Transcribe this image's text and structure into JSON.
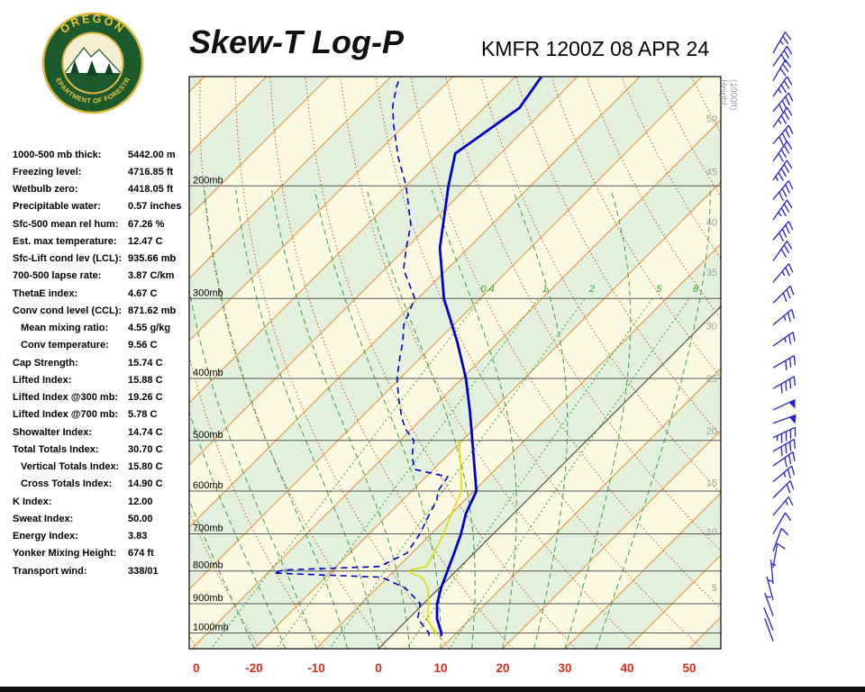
{
  "header": {
    "title": "Skew-T Log-P",
    "station_time": "KMFR 1200Z 08 APR 24",
    "logo_text_top": "OREGON",
    "logo_text_bottom": "DEPARTMENT OF FORESTRY"
  },
  "indices": [
    {
      "label": "1000-500 mb thick:",
      "value": "5442.00 m",
      "indent": false
    },
    {
      "label": "Freezing level:",
      "value": "4716.85 ft",
      "indent": false
    },
    {
      "label": "Wetbulb zero:",
      "value": "4418.05 ft",
      "indent": false
    },
    {
      "label": "Precipitable water:",
      "value": "0.57 inches",
      "indent": false
    },
    {
      "label": "Sfc-500 mean rel hum:",
      "value": "67.26 %",
      "indent": false
    },
    {
      "label": "Est. max temperature:",
      "value": "12.47 C",
      "indent": false
    },
    {
      "label": "Sfc-Lift cond lev (LCL):",
      "value": "935.66 mb",
      "indent": false
    },
    {
      "label": "700-500 lapse rate:",
      "value": "3.87 C/km",
      "indent": false
    },
    {
      "label": "ThetaE index:",
      "value": "4.67 C",
      "indent": false
    },
    {
      "label": "Conv cond level (CCL):",
      "value": "871.62 mb",
      "indent": false
    },
    {
      "label": "Mean mixing ratio:",
      "value": "4.55 g/kg",
      "indent": true
    },
    {
      "label": "Conv temperature:",
      "value": "9.56 C",
      "indent": true
    },
    {
      "label": "Cap Strength:",
      "value": "15.74 C",
      "indent": false
    },
    {
      "label": "Lifted Index:",
      "value": "15.88 C",
      "indent": false
    },
    {
      "label": "Lifted Index @300 mb:",
      "value": "19.26 C",
      "indent": false
    },
    {
      "label": "Lifted Index @700 mb:",
      "value": "5.78 C",
      "indent": false
    },
    {
      "label": "Showalter Index:",
      "value": "14.74 C",
      "indent": false
    },
    {
      "label": "Total Totals Index:",
      "value": "30.70 C",
      "indent": false
    },
    {
      "label": "Vertical Totals Index:",
      "value": "15.80 C",
      "indent": true
    },
    {
      "label": "Cross Totals Index:",
      "value": "14.90 C",
      "indent": true
    },
    {
      "label": "K Index:",
      "value": "12.00",
      "indent": false
    },
    {
      "label": "Sweat Index:",
      "value": "50.00",
      "indent": false
    },
    {
      "label": "Energy Index:",
      "value": "3.83",
      "indent": false
    },
    {
      "label": "Yonker Mixing Height:",
      "value": "674 ft",
      "indent": false
    },
    {
      "label": "Transport wind:",
      "value": "338/01",
      "indent": false
    }
  ],
  "chart_data": {
    "type": "skewt-log-p-sounding",
    "title": "Skew-T Log-P",
    "station_time": "KMFR 1200Z 08 APR 24",
    "pressure_axis": {
      "unit": "mb",
      "levels": [
        {
          "p": 200,
          "label": "200mb"
        },
        {
          "p": 300,
          "label": "300mb"
        },
        {
          "p": 400,
          "label": "400mb"
        },
        {
          "p": 500,
          "label": "500mb"
        },
        {
          "p": 600,
          "label": "600mb"
        },
        {
          "p": 700,
          "label": "700mb"
        },
        {
          "p": 800,
          "label": "800mb"
        },
        {
          "p": 900,
          "label": "900mb"
        },
        {
          "p": 1000,
          "label": "1000mb"
        }
      ]
    },
    "temp_axis": {
      "unit": "C",
      "labels": [
        {
          "label": "0",
          "t": -29.3
        },
        {
          "label": "-20",
          "t": -20
        },
        {
          "label": "-10",
          "t": -10
        },
        {
          "label": "0",
          "t": 0
        },
        {
          "label": "10",
          "t": 10
        },
        {
          "label": "20",
          "t": 20
        },
        {
          "label": "30",
          "t": 30
        },
        {
          "label": "40",
          "t": 40
        },
        {
          "label": "50",
          "t": 50
        }
      ]
    },
    "height_axis": {
      "label_line1": "Height",
      "label_line2": "(1000ft)",
      "ticks": [
        {
          "kft": 50,
          "p": 157
        },
        {
          "kft": 45,
          "p": 190
        },
        {
          "kft": 40,
          "p": 228
        },
        {
          "kft": 35,
          "p": 273
        },
        {
          "kft": 30,
          "p": 331
        },
        {
          "kft": 25,
          "p": 400
        },
        {
          "kft": 20,
          "p": 483
        },
        {
          "kft": 15,
          "p": 582
        },
        {
          "kft": 10,
          "p": 694
        },
        {
          "kft": 5,
          "p": 849
        }
      ]
    },
    "mixing_ratio_lines": {
      "values_g_kg": [
        0.4,
        1,
        2,
        5,
        8
      ],
      "label_p": 293
    },
    "isotherm_step_c": 10,
    "dry_adiabats_theta_k": {
      "min": 230,
      "max": 420,
      "step": 10
    },
    "moist_adiabats_tw_c": [
      -20,
      -15,
      -10,
      -5,
      0,
      5,
      10,
      15,
      20,
      25,
      30,
      35
    ],
    "profiles": {
      "temperature_c": [
        [
          1010,
          8
        ],
        [
          1000,
          7.6
        ],
        [
          950,
          4.6
        ],
        [
          900,
          2.2
        ],
        [
          850,
          0.3
        ],
        [
          800,
          -1.4
        ],
        [
          750,
          -3.2
        ],
        [
          700,
          -5.2
        ],
        [
          650,
          -7.7
        ],
        [
          600,
          -9.6
        ],
        [
          550,
          -13.8
        ],
        [
          500,
          -18.4
        ],
        [
          450,
          -23.5
        ],
        [
          400,
          -29.4
        ],
        [
          350,
          -36.8
        ],
        [
          300,
          -45.8
        ],
        [
          250,
          -54.6
        ],
        [
          200,
          -63.2
        ],
        [
          178,
          -67.3
        ],
        [
          151,
          -64.3
        ],
        [
          135,
          -65.8
        ]
      ],
      "dewpoint_c": [
        [
          1010,
          6
        ],
        [
          1000,
          5.6
        ],
        [
          950,
          1.5
        ],
        [
          900,
          -0.5
        ],
        [
          850,
          -5.5
        ],
        [
          818,
          -11
        ],
        [
          806,
          -29
        ],
        [
          797,
          -28
        ],
        [
          787,
          -13
        ],
        [
          750,
          -10.8
        ],
        [
          700,
          -11.8
        ],
        [
          650,
          -13.5
        ],
        [
          620,
          -14.5
        ],
        [
          600,
          -15.8
        ],
        [
          570,
          -16.5
        ],
        [
          555,
          -23
        ],
        [
          530,
          -25.5
        ],
        [
          500,
          -27.8
        ],
        [
          480,
          -31
        ],
        [
          460,
          -33.5
        ],
        [
          430,
          -37
        ],
        [
          400,
          -40.5
        ],
        [
          370,
          -43.5
        ],
        [
          350,
          -45.5
        ],
        [
          330,
          -48
        ],
        [
          300,
          -50.5
        ],
        [
          270,
          -57
        ],
        [
          250,
          -60
        ],
        [
          230,
          -63
        ],
        [
          200,
          -70
        ],
        [
          180,
          -76
        ],
        [
          160,
          -82
        ],
        [
          150,
          -85
        ],
        [
          140,
          -87.5
        ],
        [
          135,
          -88.5
        ]
      ],
      "wetbulb_c": [
        [
          1010,
          7
        ],
        [
          1000,
          6.6
        ],
        [
          950,
          3
        ],
        [
          900,
          0.8
        ],
        [
          850,
          -1.8
        ],
        [
          818,
          -4.5
        ],
        [
          806,
          -7
        ],
        [
          797,
          -7.5
        ],
        [
          787,
          -5.5
        ],
        [
          750,
          -6.5
        ],
        [
          700,
          -8
        ],
        [
          650,
          -10
        ],
        [
          600,
          -12
        ],
        [
          550,
          -16
        ],
        [
          500,
          -20.5
        ]
      ]
    },
    "wind_barbs_kt": [
      [
        124,
        30,
        25
      ],
      [
        130,
        35,
        30
      ],
      [
        137,
        30,
        30
      ],
      [
        145,
        35,
        35
      ],
      [
        153,
        40,
        40
      ],
      [
        162,
        35,
        35
      ],
      [
        172,
        40,
        40
      ],
      [
        183,
        35,
        40
      ],
      [
        196,
        35,
        45
      ],
      [
        210,
        40,
        40
      ],
      [
        226,
        35,
        35
      ],
      [
        243,
        40,
        40
      ],
      [
        262,
        35,
        30
      ],
      [
        283,
        40,
        25
      ],
      [
        305,
        45,
        30
      ],
      [
        330,
        50,
        25
      ],
      [
        356,
        55,
        25
      ],
      [
        385,
        60,
        30
      ],
      [
        415,
        60,
        40
      ],
      [
        448,
        65,
        50
      ],
      [
        470,
        70,
        50
      ],
      [
        495,
        65,
        45
      ],
      [
        520,
        60,
        40
      ],
      [
        548,
        55,
        30
      ],
      [
        580,
        50,
        25
      ],
      [
        615,
        45,
        20
      ],
      [
        655,
        40,
        15
      ],
      [
        700,
        30,
        10
      ],
      [
        745,
        20,
        10
      ],
      [
        790,
        10,
        10
      ],
      [
        838,
        355,
        5
      ],
      [
        888,
        345,
        5
      ],
      [
        940,
        340,
        3
      ],
      [
        990,
        338,
        2
      ],
      [
        1030,
        340,
        2
      ]
    ],
    "colors": {
      "band_cream": "#fcf9e2",
      "band_green": "#e4f0de",
      "isotherm": "#e2903c",
      "zero_isotherm": "#3c3c3c",
      "dry_adiabat": "#c35a28",
      "moist_adiabat": "#3fa03f",
      "mixing_ratio": "#2fa82f",
      "pressure_line": "#555555",
      "temperature": "#0000cc",
      "dewpoint": "#0000cc",
      "wetbulb": "#dede00",
      "axis_label_red": "#e02a1a",
      "height_label": "#9aa39a",
      "barb": "#2222cc"
    }
  }
}
